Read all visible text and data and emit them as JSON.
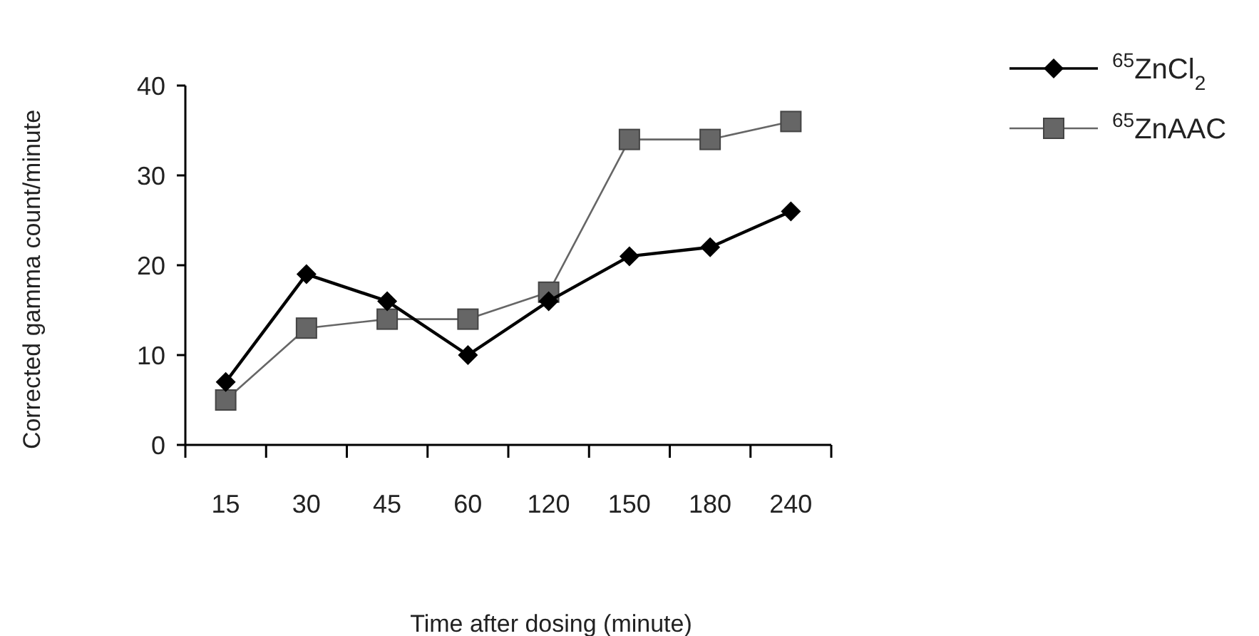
{
  "chart_data": {
    "type": "line",
    "xlabel": "Time after dosing (minute)",
    "ylabel": "Corrected gamma count/minute",
    "categories": [
      "15",
      "30",
      "45",
      "60",
      "120",
      "150",
      "180",
      "240"
    ],
    "series": [
      {
        "name": "$^{65}$ZnCl$_{2}$",
        "color": "#000000",
        "marker": "diamond",
        "values": [
          7,
          19,
          16,
          10,
          16,
          21,
          22,
          26
        ]
      },
      {
        "name": "$^{65}$ZnAAC",
        "color": "#666666",
        "marker": "square",
        "values": [
          5,
          13,
          14,
          14,
          17,
          34,
          34,
          36
        ]
      }
    ],
    "ylim": [
      0,
      40
    ],
    "yticks": [
      0,
      10,
      20,
      30,
      40
    ],
    "grid": false,
    "legend": "top right"
  }
}
